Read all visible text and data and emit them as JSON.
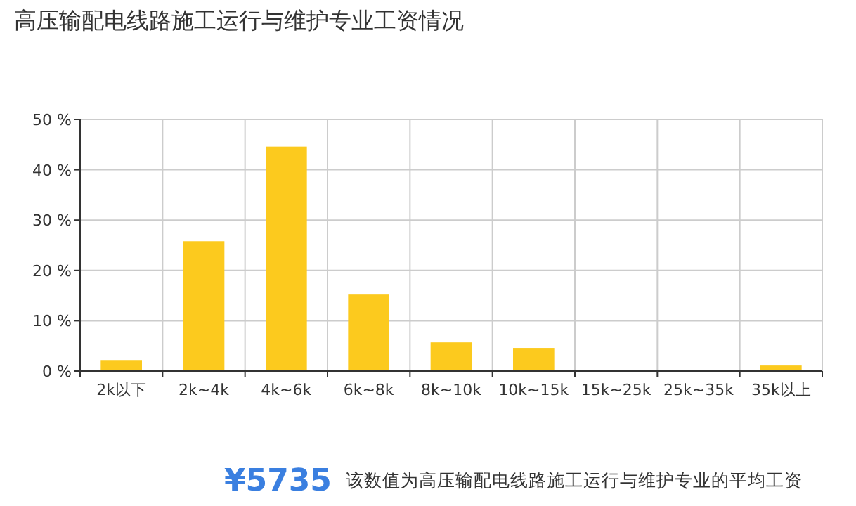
{
  "chart_data": {
    "type": "bar",
    "title": "高压输配电线路施工运行与维护专业工资情况",
    "categories": [
      "2k以下",
      "2k~4k",
      "4k~6k",
      "6k~8k",
      "8k~10k",
      "10k~15k",
      "15k~25k",
      "25k~35k",
      "35k以上"
    ],
    "values": [
      2.2,
      25.8,
      44.6,
      15.2,
      5.7,
      4.6,
      0,
      0,
      1.1
    ],
    "color": "#fcca1e",
    "ylim": [
      0,
      50
    ],
    "yticks": [
      {
        "value": 0,
        "label": "0 %"
      },
      {
        "value": 10,
        "label": "10 %"
      },
      {
        "value": 20,
        "label": "20 %"
      },
      {
        "value": 30,
        "label": "30 %"
      },
      {
        "value": 40,
        "label": "40 %"
      },
      {
        "value": 50,
        "label": "50 %"
      }
    ],
    "grid": true,
    "annotations": [
      "¥5735",
      "该数值为高压输配电线路施工运行与维护专业的平均工资"
    ]
  }
}
